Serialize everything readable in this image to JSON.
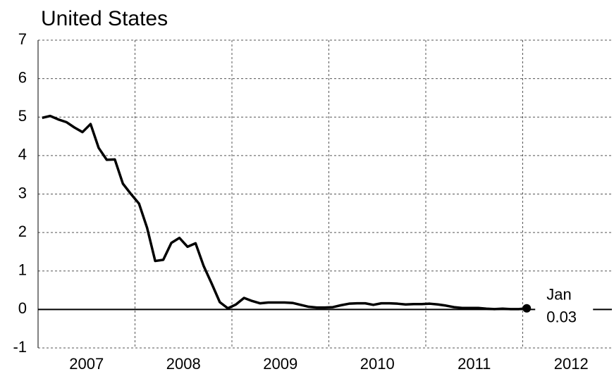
{
  "chart_data": {
    "type": "line",
    "title": "United States",
    "x": [
      "2007-01",
      "2007-02",
      "2007-03",
      "2007-04",
      "2007-05",
      "2007-06",
      "2007-07",
      "2007-08",
      "2007-09",
      "2007-10",
      "2007-11",
      "2007-12",
      "2008-01",
      "2008-02",
      "2008-03",
      "2008-04",
      "2008-05",
      "2008-06",
      "2008-07",
      "2008-08",
      "2008-09",
      "2008-10",
      "2008-11",
      "2008-12",
      "2009-01",
      "2009-02",
      "2009-03",
      "2009-04",
      "2009-05",
      "2009-06",
      "2009-07",
      "2009-08",
      "2009-09",
      "2009-10",
      "2009-11",
      "2009-12",
      "2010-01",
      "2010-02",
      "2010-03",
      "2010-04",
      "2010-05",
      "2010-06",
      "2010-07",
      "2010-08",
      "2010-09",
      "2010-10",
      "2010-11",
      "2010-12",
      "2011-01",
      "2011-02",
      "2011-03",
      "2011-04",
      "2011-05",
      "2011-06",
      "2011-07",
      "2011-08",
      "2011-09",
      "2011-10",
      "2011-11",
      "2011-12",
      "2012-01"
    ],
    "series": [
      {
        "name": "United States",
        "color": "#000000",
        "values": [
          4.98,
          5.03,
          4.94,
          4.87,
          4.73,
          4.61,
          4.82,
          4.2,
          3.89,
          3.9,
          3.27,
          3.0,
          2.75,
          2.12,
          1.26,
          1.29,
          1.73,
          1.86,
          1.63,
          1.72,
          1.13,
          0.67,
          0.19,
          0.03,
          0.13,
          0.3,
          0.22,
          0.16,
          0.18,
          0.18,
          0.18,
          0.17,
          0.12,
          0.07,
          0.05,
          0.05,
          0.06,
          0.11,
          0.15,
          0.16,
          0.16,
          0.12,
          0.16,
          0.16,
          0.15,
          0.13,
          0.14,
          0.14,
          0.15,
          0.13,
          0.1,
          0.06,
          0.04,
          0.04,
          0.04,
          0.02,
          0.01,
          0.02,
          0.01,
          0.01,
          0.03
        ]
      }
    ],
    "annotation": {
      "month": "Jan",
      "value_label": "0.03"
    },
    "xlim": [
      2007,
      2012.92
    ],
    "xticks": [
      2007,
      2008,
      2009,
      2010,
      2011,
      2012
    ],
    "ylim": [
      -1,
      7
    ],
    "yticks": [
      -1,
      0,
      1,
      2,
      3,
      4,
      5,
      6,
      7
    ],
    "grid": true
  }
}
